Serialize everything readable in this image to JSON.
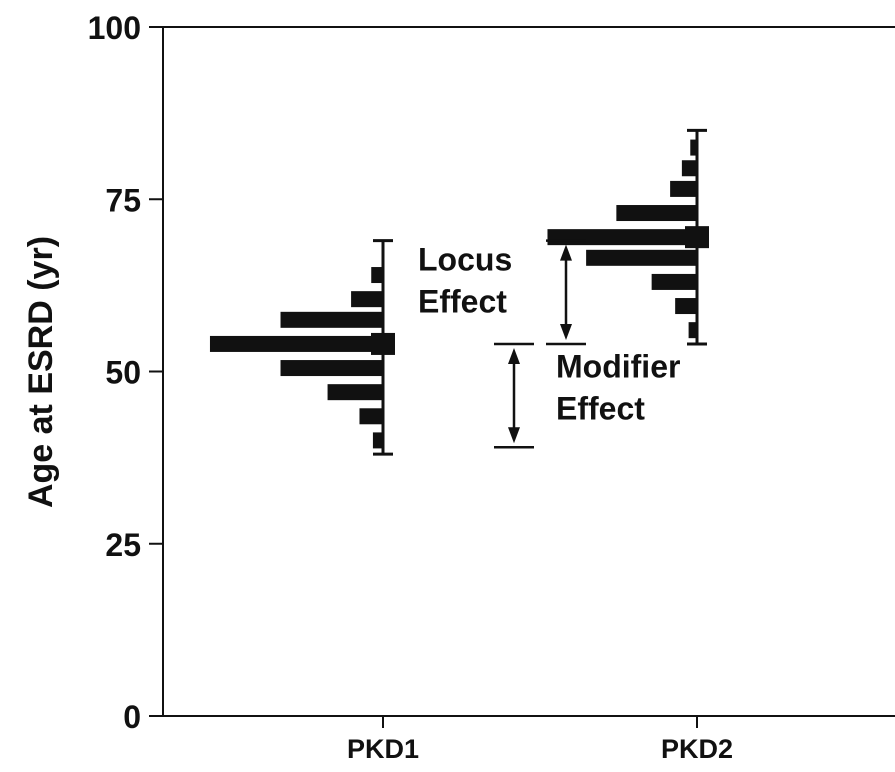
{
  "chart_data": {
    "type": "bar",
    "orientation": "horizontal-histograms",
    "ylabel": "Age at ESRD (yr)",
    "ylim": [
      0,
      100
    ],
    "yticks": [
      "0",
      "25",
      "50",
      "75",
      "100"
    ],
    "categories": [
      "PKD1",
      "PKD2"
    ],
    "grid": false,
    "bar_color": "#111111",
    "groups": [
      {
        "category": "PKD1",
        "range": [
          38,
          69
        ],
        "mean": 54,
        "bins": [
          {
            "age": 40,
            "value": 0.6
          },
          {
            "age": 43.5,
            "value": 1.4
          },
          {
            "age": 47,
            "value": 3.3
          },
          {
            "age": 50.5,
            "value": 6.1
          },
          {
            "age": 54,
            "value": 10.3
          },
          {
            "age": 57.5,
            "value": 6.1
          },
          {
            "age": 60.5,
            "value": 1.9
          },
          {
            "age": 64,
            "value": 0.7
          }
        ]
      },
      {
        "category": "PKD2",
        "range": [
          54,
          85
        ],
        "mean": 69.5,
        "bins": [
          {
            "age": 56,
            "value": 0.5
          },
          {
            "age": 59.5,
            "value": 1.3
          },
          {
            "age": 63,
            "value": 2.7
          },
          {
            "age": 66.5,
            "value": 6.6
          },
          {
            "age": 69.5,
            "value": 8.9
          },
          {
            "age": 73,
            "value": 4.8
          },
          {
            "age": 76.5,
            "value": 1.6
          },
          {
            "age": 79.5,
            "value": 0.9
          },
          {
            "age": 82.5,
            "value": 0.4
          }
        ]
      }
    ],
    "annotations": [
      {
        "id": "locus",
        "lines": [
          "Locus",
          "Effect"
        ],
        "from": 54,
        "to": 69
      },
      {
        "id": "modifier",
        "lines": [
          "Modifier",
          "Effect"
        ],
        "from": 39,
        "to": 54
      }
    ]
  }
}
